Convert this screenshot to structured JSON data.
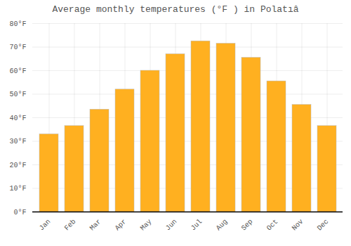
{
  "chart_data": {
    "type": "bar",
    "title": "Average monthly temperatures (°F ) in Polatıâ",
    "categories": [
      "Jan",
      "Feb",
      "Mar",
      "Apr",
      "May",
      "Jun",
      "Jul",
      "Aug",
      "Sep",
      "Oct",
      "Nov",
      "Dec"
    ],
    "values": [
      33,
      36.5,
      43.5,
      52,
      60,
      67,
      72.5,
      71.5,
      65.5,
      55.5,
      45.5,
      36.5
    ],
    "color": "#FFB020",
    "ylim": [
      0,
      80
    ],
    "yticks": [
      {
        "value": 0,
        "label": "0°F"
      },
      {
        "value": 10,
        "label": "10°F"
      },
      {
        "value": 20,
        "label": "20°F"
      },
      {
        "value": 30,
        "label": "30°F"
      },
      {
        "value": 40,
        "label": "40°F"
      },
      {
        "value": 50,
        "label": "50°F"
      },
      {
        "value": 60,
        "label": "60°F"
      },
      {
        "value": 70,
        "label": "70°F"
      },
      {
        "value": 80,
        "label": "80°F"
      }
    ],
    "grid": true
  }
}
